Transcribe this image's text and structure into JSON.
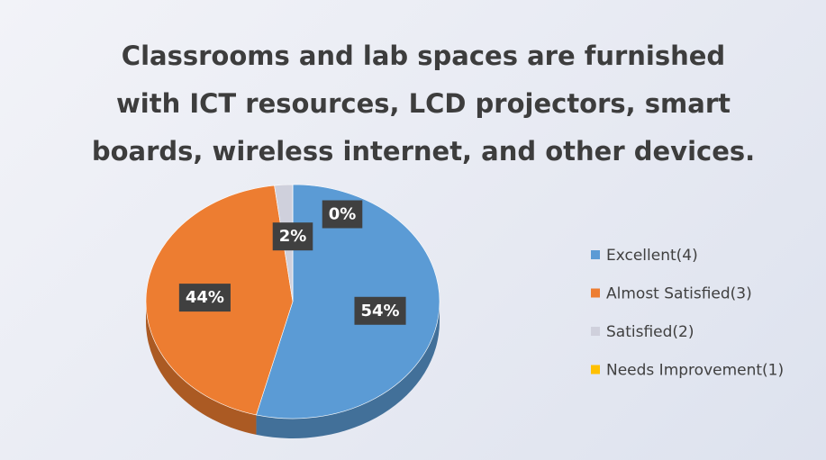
{
  "chart_data": {
    "type": "pie",
    "title": "Classrooms and lab spaces are furnished with ICT resources, LCD projectors, smart boards, wireless internet, and other devices.",
    "categories": [
      "Excellent(4)",
      "Almost Satisfied(3)",
      "Satisfied(2)",
      "Needs Improvement(1)"
    ],
    "values": [
      54,
      44,
      2,
      0
    ],
    "value_labels": [
      "54%",
      "44%",
      "2%",
      "0%"
    ],
    "colors": [
      "#5b9bd5",
      "#ed7d31",
      "#cfd0dc",
      "#ffc000"
    ],
    "legend": "right"
  }
}
